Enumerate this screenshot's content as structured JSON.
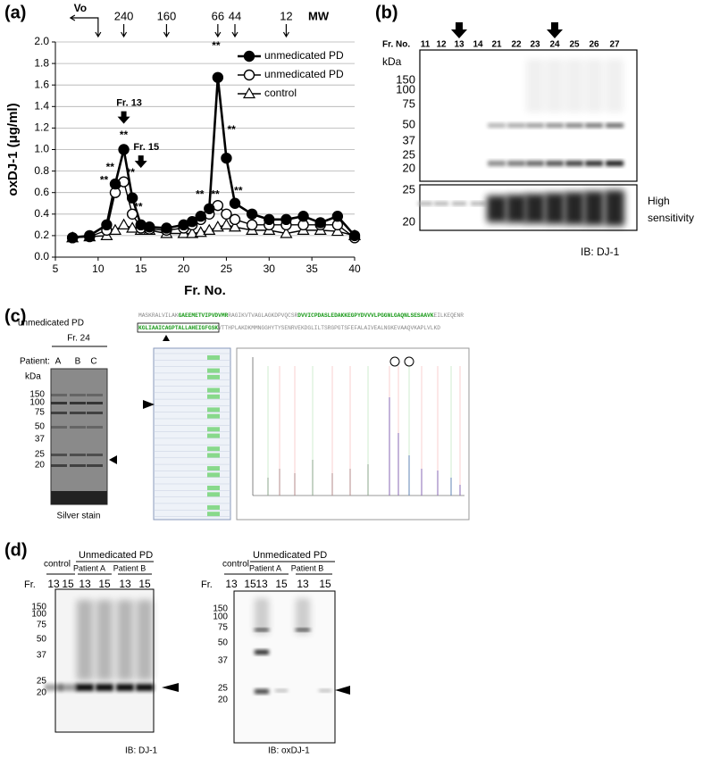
{
  "chart_data": {
    "type": "line",
    "panel_label": "(a)",
    "x_label": "Fr. No.",
    "y_label": "oxDJ-1 (μg/ml)",
    "x": [
      7,
      9,
      11,
      12,
      13,
      14,
      15,
      16,
      18,
      20,
      21,
      22,
      23,
      24,
      25,
      26,
      28,
      30,
      32,
      34,
      36,
      38,
      40
    ],
    "series": [
      {
        "name": "unmedicated PD",
        "color": "#000000",
        "marker": "filled-circle",
        "values": [
          0.18,
          0.2,
          0.3,
          0.68,
          1.0,
          0.55,
          0.3,
          0.28,
          0.27,
          0.3,
          0.33,
          0.38,
          0.45,
          1.67,
          0.92,
          0.5,
          0.4,
          0.35,
          0.35,
          0.38,
          0.32,
          0.38,
          0.2
        ]
      },
      {
        "name": "unmedicated PD",
        "color": "#000000",
        "marker": "open-circle",
        "values": [
          0.18,
          0.19,
          0.25,
          0.6,
          0.7,
          0.4,
          0.27,
          0.26,
          0.25,
          0.27,
          0.3,
          0.35,
          0.4,
          0.48,
          0.4,
          0.35,
          0.3,
          0.3,
          0.3,
          0.3,
          0.3,
          0.3,
          0.18
        ]
      },
      {
        "name": "control",
        "color": "#000000",
        "marker": "open-triangle",
        "values": [
          0.18,
          0.19,
          0.2,
          0.25,
          0.3,
          0.27,
          0.25,
          0.25,
          0.22,
          0.22,
          0.22,
          0.23,
          0.25,
          0.28,
          0.3,
          0.28,
          0.25,
          0.25,
          0.22,
          0.25,
          0.25,
          0.24,
          0.2
        ]
      }
    ],
    "xlim": [
      5,
      40
    ],
    "xticks": [
      5,
      10,
      15,
      20,
      25,
      30,
      35,
      40
    ],
    "ylim": [
      0,
      2
    ],
    "yticks": [
      {
        "value": 0,
        "label": "0.0"
      },
      0.2,
      0.4,
      0.6,
      0.8,
      {
        "value": 1,
        "label": "1.0"
      },
      1.2,
      1.4,
      1.6,
      1.8,
      {
        "value": 2,
        "label": "2.0"
      }
    ],
    "grid": true,
    "legend": "top-right",
    "mw_title": "MW",
    "void_label": "Vo",
    "void_x": 10,
    "mw_markers": [
      {
        "label": "240",
        "x": 13
      },
      {
        "label": "160",
        "x": 18
      },
      {
        "label": "66",
        "x": 24
      },
      {
        "label": "44",
        "x": 26
      },
      {
        "label": "12",
        "x": 32
      }
    ],
    "annotations": [
      {
        "text": "**",
        "x": 23.8,
        "y": 1.96
      },
      {
        "text": "**",
        "x": 25.6,
        "y": 1.18
      },
      {
        "text": "**",
        "x": 13.0,
        "y": 1.13
      },
      {
        "text": "**",
        "x": 11.4,
        "y": 0.83
      },
      {
        "text": "**",
        "x": 10.7,
        "y": 0.71
      },
      {
        "text": "**",
        "x": 13.8,
        "y": 0.78
      },
      {
        "text": "**",
        "x": 14.7,
        "y": 0.46
      },
      {
        "text": "**",
        "x": 21.9,
        "y": 0.58
      },
      {
        "text": "**",
        "x": 23.7,
        "y": 0.58
      },
      {
        "text": "**",
        "x": 26.4,
        "y": 0.61
      }
    ],
    "callouts": [
      {
        "text": "Fr. 13",
        "x": 13,
        "y": 1.43
      },
      {
        "text": "Fr. 15",
        "x": 15,
        "y": 1.02
      }
    ]
  },
  "panel_b": {
    "label": "(b)",
    "fr_label": "Fr. No.",
    "lanes": [
      "11",
      "12",
      "13",
      "14",
      "21",
      "22",
      "23",
      "24",
      "25",
      "26",
      "27"
    ],
    "kda": "kDa",
    "markers": [
      "150",
      "100",
      "75",
      "50",
      "37",
      "25",
      "20"
    ],
    "hs_markers": [
      "25",
      "20"
    ],
    "hs_label": [
      "High",
      "sensitivity"
    ],
    "ib": "IB: DJ-1"
  },
  "panel_c": {
    "label": "(c)",
    "title": "unmedicated PD",
    "fraction": "Fr. 24",
    "patient_label": "Patient:",
    "patients": [
      "A",
      "B",
      "C"
    ],
    "kda": "kDa",
    "markers": [
      "150",
      "100",
      "75",
      "50",
      "37",
      "25",
      "20"
    ],
    "stain": "Silver stain",
    "sequence": [
      [
        "MASKRALVILAK",
        "GAEEMETVIPVDVMR",
        "RAGIKVTVAGLAGKDPVQCSR",
        "DVVICPDASLEDAKKEGPYDVVVLPGGNLGAQNLSESAAVK",
        "EILKEQENR"
      ],
      [
        "KGLIAAICAGPTALLAHEIGFGSK",
        "VTTHPLAKDKMMNGGHYTYSENRVEKDGLILTSRGPGTSFEFALAIVEALNGKEVAAQVKAPLVLKD"
      ]
    ]
  },
  "panel_d": {
    "label": "(d)",
    "blots": [
      {
        "control": "control",
        "group": "Unmedicated PD",
        "patients": [
          "Patient A",
          "Patient B"
        ],
        "fr": "Fr.",
        "lanes": [
          "13",
          "15",
          "13",
          "15",
          "13",
          "15"
        ],
        "markers": [
          "150",
          "100",
          "75",
          "50",
          "37",
          "25",
          "20"
        ],
        "ib": "IB: DJ-1"
      },
      {
        "control": "control",
        "group": "Unmedicated PD",
        "patients": [
          "Patient A",
          "Patient B"
        ],
        "fr": "Fr.",
        "lanes": [
          "13",
          "15",
          "13",
          "15",
          "13",
          "15"
        ],
        "markers": [
          "150",
          "100",
          "75",
          "50",
          "37",
          "25",
          "20"
        ],
        "ib": "IB: oxDJ-1"
      }
    ]
  }
}
